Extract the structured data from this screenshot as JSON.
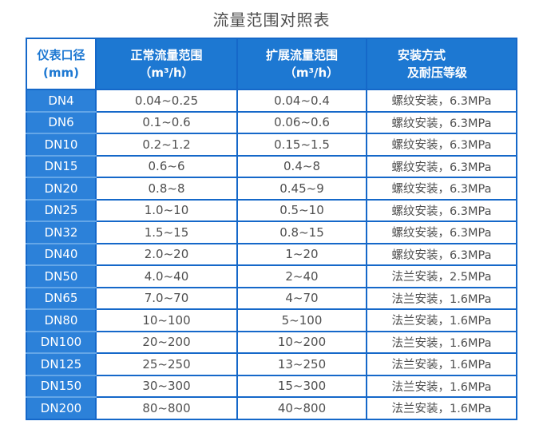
{
  "title": "流量范围对照表",
  "colors": {
    "header_blue": "#1d78d2",
    "row_label_blue": "#2c81d9",
    "border_blue": "#1568c9",
    "label_separator_blue": "#64a6e7",
    "header_text": "#ffffff",
    "data_text": "#4f4f4f",
    "title_text": "#4d4d4d"
  },
  "table": {
    "headers": [
      {
        "lines": [
          "仪表口径",
          "(mm)"
        ]
      },
      {
        "lines": [
          "正常流量范围",
          "（m³/h）"
        ]
      },
      {
        "lines": [
          "扩展流量范围",
          "（m³/h）"
        ]
      },
      {
        "lines": [
          "安装方式",
          "及耐压等级"
        ]
      }
    ],
    "rows": [
      {
        "dn": "DN4",
        "normal": "0.04~0.25",
        "extended": "0.04~0.4",
        "install": "螺纹安装，6.3MPa"
      },
      {
        "dn": "DN6",
        "normal": "0.1~0.6",
        "extended": "0.06~0.6",
        "install": "螺纹安装，6.3MPa"
      },
      {
        "dn": "DN10",
        "normal": "0.2~1.2",
        "extended": "0.15~1.5",
        "install": "螺纹安装，6.3MPa"
      },
      {
        "dn": "DN15",
        "normal": "0.6~6",
        "extended": "0.4~8",
        "install": "螺纹安装，6.3MPa"
      },
      {
        "dn": "DN20",
        "normal": "0.8~8",
        "extended": "0.45~9",
        "install": "螺纹安装，6.3MPa"
      },
      {
        "dn": "DN25",
        "normal": "1.0~10",
        "extended": "0.5~10",
        "install": "螺纹安装，6.3MPa"
      },
      {
        "dn": "DN32",
        "normal": "1.5~15",
        "extended": "0.8~15",
        "install": "螺纹安装，6.3MPa"
      },
      {
        "dn": "DN40",
        "normal": "2.0~20",
        "extended": "1~20",
        "install": "螺纹安装，6.3MPa"
      },
      {
        "dn": "DN50",
        "normal": "4.0~40",
        "extended": "2~40",
        "install": "法兰安装，2.5MPa"
      },
      {
        "dn": "DN65",
        "normal": "7.0~70",
        "extended": "4~70",
        "install": "法兰安装，1.6MPa"
      },
      {
        "dn": "DN80",
        "normal": "10~100",
        "extended": "5~100",
        "install": "法兰安装，1.6MPa"
      },
      {
        "dn": "DN100",
        "normal": "20~200",
        "extended": "10~200",
        "install": "法兰安装，1.6MPa"
      },
      {
        "dn": "DN125",
        "normal": "25~250",
        "extended": "13~250",
        "install": "法兰安装，1.6MPa"
      },
      {
        "dn": "DN150",
        "normal": "30~300",
        "extended": "15~300",
        "install": "法兰安装，1.6MPa"
      },
      {
        "dn": "DN200",
        "normal": "80~800",
        "extended": "40~800",
        "install": "法兰安装，1.6MPa"
      }
    ]
  }
}
